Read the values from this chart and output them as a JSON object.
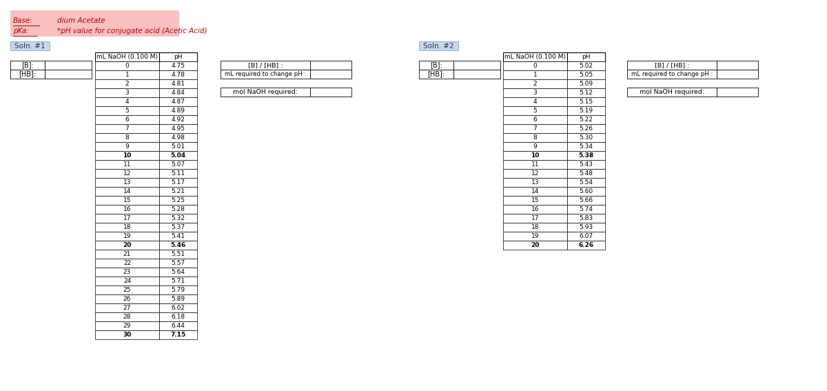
{
  "base_label": "Base:",
  "base_value": "dium Acetate",
  "pka_label": "pKa:",
  "pka_value": "*pH value for conjugate acid (Acetic Acid)",
  "soln1_label": "Soln. #1",
  "soln2_label": "Soln. #2",
  "header_naoh": "mL NaOH (0.100 M)",
  "header_ph": "pH",
  "soln1_ml": [
    0,
    1,
    2,
    3,
    4,
    5,
    6,
    7,
    8,
    9,
    10,
    11,
    12,
    13,
    14,
    15,
    16,
    17,
    18,
    19,
    20,
    21,
    22,
    23,
    24,
    25,
    26,
    27,
    28,
    29,
    30
  ],
  "soln1_ph": [
    "4.75",
    "4.78",
    "4.81",
    "4.84",
    "4.87",
    "4.89",
    "4.92",
    "4.95",
    "4.98",
    "5.01",
    "5.04",
    "5.07",
    "5.11",
    "5.17",
    "5.21",
    "5.25",
    "5.28",
    "5.32",
    "5.37",
    "5.41",
    "5.46",
    "5.51",
    "5.57",
    "5.64",
    "5.71",
    "5.79",
    "5.89",
    "6.02",
    "6.18",
    "6.44",
    "7.15"
  ],
  "soln1_bold_rows": [
    10,
    20,
    30
  ],
  "soln2_ml": [
    0,
    1,
    2,
    3,
    4,
    5,
    6,
    7,
    8,
    9,
    10,
    11,
    12,
    13,
    14,
    15,
    16,
    17,
    18,
    19,
    20
  ],
  "soln2_ph": [
    "5.02",
    "5.05",
    "5.09",
    "5.12",
    "5.15",
    "5.19",
    "5.22",
    "5.26",
    "5.30",
    "5.34",
    "5.38",
    "5.43",
    "5.48",
    "5.54",
    "5.60",
    "5.66",
    "5.74",
    "5.83",
    "5.93",
    "6.07",
    "6.26"
  ],
  "soln2_bold_rows": [
    10,
    20
  ],
  "b_label": "[B]:",
  "hb_label": "[HB]:",
  "ratio_label": "[B] / [HB] :",
  "ml_change_label": "mL required to change pH :",
  "mol_label": "mol NaOH required:",
  "pink_bg": "#f9c0c0",
  "soln_bg": "#c5d9f1",
  "white": "#ffffff",
  "black": "#000000",
  "red_text": "#c00000",
  "dark_text": "#404040"
}
